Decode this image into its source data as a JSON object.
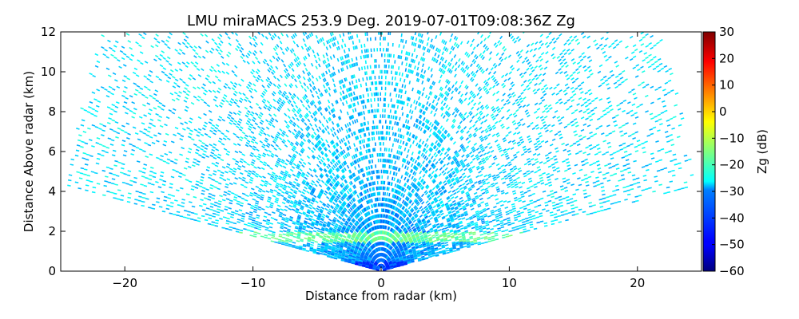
{
  "chart_data": {
    "type": "heatmap",
    "title": "LMU miraMACS 253.9 Deg. 2019-07-01T09:08:36Z  Zg",
    "xlabel": "Distance from radar (km)",
    "ylabel": "Distance Above radar  (km)",
    "xlim": [
      -25,
      25
    ],
    "ylim": [
      0,
      12
    ],
    "x_ticks": [
      -20,
      -10,
      0,
      10,
      20
    ],
    "x_tick_labels": [
      "−20",
      "−10",
      "0",
      "10",
      "20"
    ],
    "y_ticks": [
      0,
      2,
      4,
      6,
      8,
      10,
      12
    ],
    "y_tick_labels": [
      "0",
      "2",
      "4",
      "6",
      "8",
      "10",
      "12"
    ],
    "colorbar": {
      "label": "Zg (dB)",
      "range": [
        -60,
        30
      ],
      "ticks": [
        -60,
        -50,
        -40,
        -30,
        -20,
        -10,
        0,
        10,
        20,
        30
      ],
      "tick_labels": [
        "−60",
        "−50",
        "−40",
        "−30",
        "−20",
        "−10",
        "0",
        "10",
        "20",
        "30"
      ],
      "colormap": "jet"
    },
    "scan": {
      "elevation_range_deg": [
        10,
        170
      ],
      "max_range_km": 25,
      "typical_far_value_dB": -28,
      "typical_near_value_dB": -38,
      "bright_band_height_km": 1.7,
      "bright_band_value_dB": -18
    },
    "grid": false
  }
}
